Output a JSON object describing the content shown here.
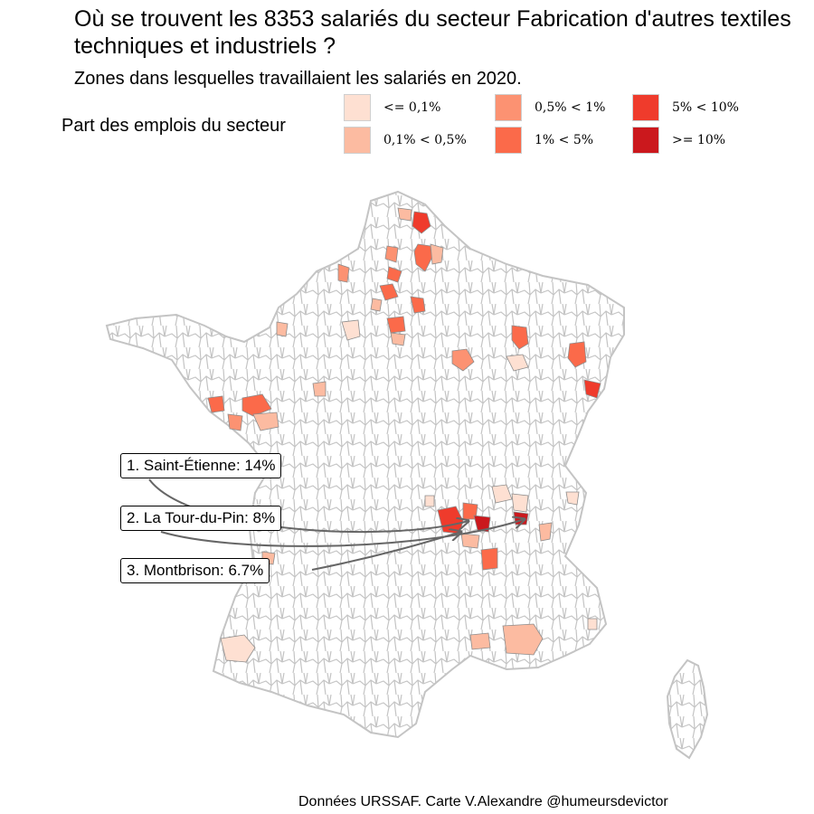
{
  "title": "Où se trouvent les 8353 salariés du secteur Fabrication d'autres textiles techniques et industriels ?",
  "subtitle": "Zones dans lesquelles travaillaient les salariés en 2020.",
  "legend": {
    "title": "Part des emplois du secteur",
    "items": [
      {
        "label": "<= 0,1%",
        "color": "#fee0d2"
      },
      {
        "label": "0,1% < 0,5%",
        "color": "#fcbba1"
      },
      {
        "label": "0,5% < 1%",
        "color": "#fc9272"
      },
      {
        "label": "1% < 5%",
        "color": "#fb6a4a"
      },
      {
        "label": "5% < 10%",
        "color": "#ef3b2c"
      },
      {
        "label": ">= 10%",
        "color": "#cb181d"
      }
    ]
  },
  "annotations": [
    {
      "label": "1. Saint-Étienne: 14%"
    },
    {
      "label": "2. La Tour-du-Pin: 8%"
    },
    {
      "label": "3. Montbrison: 6.7%"
    }
  ],
  "caption": "Données URSSAF. Carte V.Alexandre @humeursdevictor"
}
